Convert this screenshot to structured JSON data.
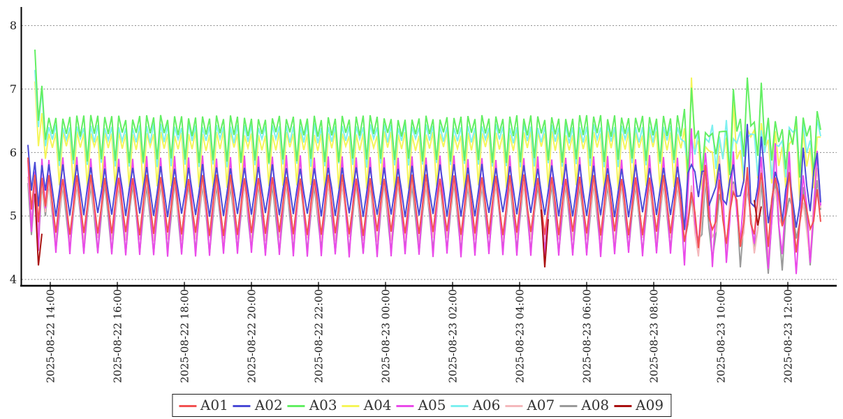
{
  "chart_data": {
    "type": "line",
    "title": "",
    "background": "#ffffff",
    "grid": {
      "show": true,
      "color": "#888888",
      "style": "dashed"
    },
    "axis_color": "#000000",
    "x_axis": {
      "tick_labels": [
        "2025-08-22 14:00",
        "2025-08-22 16:00",
        "2025-08-22 18:00",
        "2025-08-22 20:00",
        "2025-08-22 22:00",
        "2025-08-23 00:00",
        "2025-08-23 02:00",
        "2025-08-23 04:00",
        "2025-08-23 06:00",
        "2025-08-23 08:00",
        "2025-08-23 10:00",
        "2025-08-23 12:00"
      ],
      "tick_interval_hours": 2,
      "data_start_time": "2025-08-22 13:20",
      "data_end_time": "2025-08-23 13:00"
    },
    "y_axis": {
      "range": [
        4,
        8.1
      ],
      "ticks": [
        {
          "label": "8",
          "value": 8
        },
        {
          "label": "7",
          "value": 7
        },
        {
          "label": "6",
          "value": 6
        },
        {
          "label": "5",
          "value": 5
        },
        {
          "label": "4",
          "value": 4
        }
      ]
    },
    "sampling": {
      "n_points": 228,
      "step_minutes": 6.25,
      "cycle_minutes": 25,
      "irregular_from_index": 188
    },
    "draw_order": [
      "A08",
      "A07",
      "A04",
      "A06",
      "A03",
      "A05",
      "A02",
      "A01",
      "A09"
    ],
    "series": [
      {
        "name": "A01",
        "color": "#f25252",
        "start": [
          5.92,
          5.1,
          5.65,
          4.9,
          5.6,
          5.15
        ],
        "cycle": [
          5.62,
          5.17,
          4.72,
          5.17
        ],
        "end_jitter": {
          "up": 0.2,
          "down": 0.3
        },
        "end_spikes": []
      },
      {
        "name": "A02",
        "color": "#4b4bd6",
        "start": [
          6.12,
          5.4,
          5.85,
          5.15,
          5.8,
          5.4
        ],
        "cycle": [
          5.78,
          5.4,
          5.02,
          5.4
        ],
        "end_jitter": {
          "up": 0.3,
          "down": 0.25
        },
        "end_spikes": [
          [
            206,
            6.45
          ],
          [
            210,
            6.25
          ]
        ]
      },
      {
        "name": "A03",
        "color": "#63ef63",
        "start": [
          null,
          null,
          7.62,
          6.5,
          7.05,
          6.2
        ],
        "cycle": [
          6.55,
          6.28,
          6.55,
          5.87
        ],
        "end_jitter": {
          "up": 0.15,
          "down": 0.3
        },
        "end_spikes": [
          [
            190,
            7.02
          ],
          [
            202,
            7.0
          ],
          [
            206,
            7.18
          ],
          [
            210,
            7.1
          ]
        ]
      },
      {
        "name": "A04",
        "color": "#f5f558",
        "start": [
          null,
          null,
          7.12,
          6.1,
          6.62,
          5.9
        ],
        "cycle": [
          6.3,
          6.06,
          6.3,
          5.45
        ],
        "end_jitter": {
          "up": 0.2,
          "down": 0.3
        },
        "end_spikes": [
          [
            190,
            7.18
          ],
          [
            202,
            6.8
          ]
        ]
      },
      {
        "name": "A05",
        "color": "#ea4bea",
        "start": [
          5.88,
          4.75,
          5.7,
          4.45,
          5.9,
          5.12
        ],
        "cycle": [
          5.92,
          5.15,
          4.38,
          5.15
        ],
        "end_jitter": {
          "up": 0.25,
          "down": 0.35
        },
        "end_spikes": [
          [
            190,
            6.38
          ]
        ]
      },
      {
        "name": "A06",
        "color": "#7df0f0",
        "start": [
          null,
          null,
          7.3,
          6.4,
          7.0,
          6.1
        ],
        "cycle": [
          6.42,
          6.18,
          6.42,
          5.8
        ],
        "end_jitter": {
          "up": 0.15,
          "down": 0.3
        },
        "end_spikes": [
          [
            210,
            6.35
          ]
        ]
      },
      {
        "name": "A07",
        "color": "#f4b8bc",
        "start": [
          5.62,
          4.9,
          5.5,
          4.72,
          5.55,
          5.06
        ],
        "cycle": [
          5.55,
          5.08,
          4.62,
          5.08
        ],
        "end_jitter": {
          "up": 0.3,
          "down": 0.35
        },
        "end_spikes": [
          [
            198,
            5.95
          ],
          [
            212,
            4.25
          ],
          [
            224,
            4.3
          ]
        ]
      },
      {
        "name": "A08",
        "color": "#9a9a9a",
        "start": [
          5.52,
          4.7,
          5.45,
          4.55,
          5.5,
          5.0
        ],
        "cycle": [
          5.5,
          5.0,
          4.45,
          5.0
        ],
        "end_jitter": {
          "up": 0.2,
          "down": 0.3
        },
        "end_spikes": [
          [
            204,
            4.19
          ],
          [
            212,
            4.09
          ],
          [
            216,
            4.14
          ],
          [
            224,
            4.22
          ]
        ]
      },
      {
        "name": "A09",
        "color": "#aa1111",
        "segments": [
          {
            "start_index": 2,
            "values": [
              5.35,
              4.22,
              4.72
            ]
          },
          {
            "start_index": 147,
            "values": [
              5.1,
              4.19,
              4.95
            ]
          },
          {
            "start_index": 208,
            "values": [
              5.25,
              4.85,
              5.15
            ]
          }
        ]
      }
    ],
    "legend": {
      "position": "bottom-center",
      "entries": [
        "A01",
        "A02",
        "A03",
        "A04",
        "A05",
        "A06",
        "A07",
        "A08",
        "A09"
      ]
    }
  }
}
